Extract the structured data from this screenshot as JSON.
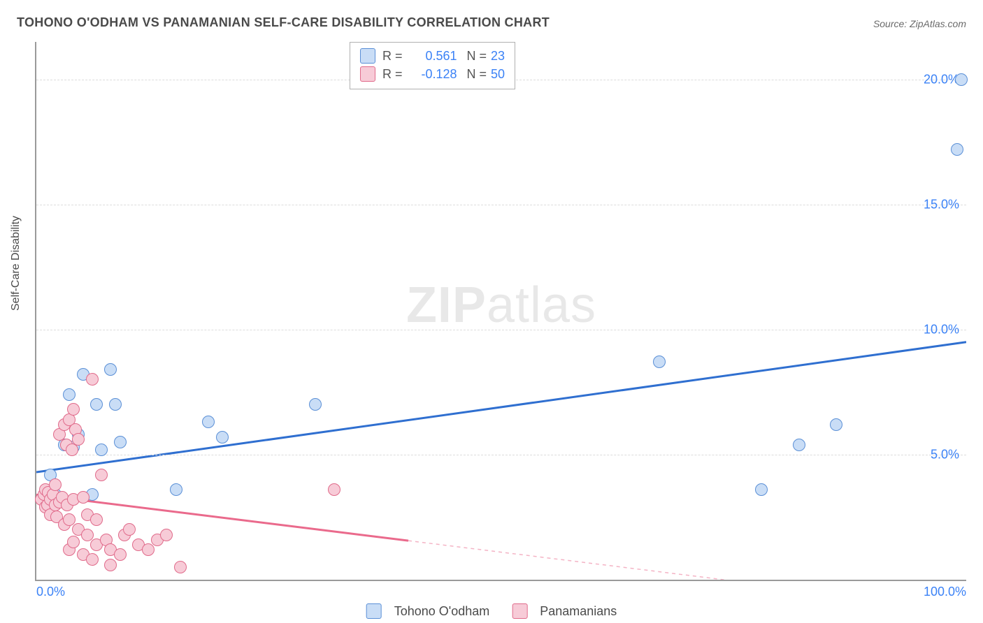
{
  "title": "TOHONO O'ODHAM VS PANAMANIAN SELF-CARE DISABILITY CORRELATION CHART",
  "source": "Source: ZipAtlas.com",
  "watermark_a": "ZIP",
  "watermark_b": "atlas",
  "chart": {
    "type": "scatter",
    "xlim": [
      0,
      100
    ],
    "ylim": [
      0,
      21.5
    ],
    "ylabel": "Self-Care Disability",
    "xtick_labels": [
      "0.0%",
      "100.0%"
    ],
    "ytick_positions": [
      5,
      10,
      15,
      20
    ],
    "ytick_labels": [
      "5.0%",
      "10.0%",
      "15.0%",
      "20.0%"
    ],
    "xtick_color": "#3b82f6",
    "ytick_color": "#3b82f6",
    "axis_color": "#9a9a9a",
    "grid_color": "#dcdcdc",
    "marker_size": 18,
    "series": [
      {
        "name": "Tohono O'odham",
        "color_fill": "#c9ddf6",
        "color_stroke": "#5a8fd6",
        "trend_color": "#2f6fd0",
        "trend": {
          "y_at_x0": 4.3,
          "y_at_x100": 9.5
        },
        "stats": {
          "R": "0.561",
          "N": "23"
        },
        "points": [
          [
            1.5,
            4.2
          ],
          [
            2.0,
            3.4
          ],
          [
            3.0,
            5.4
          ],
          [
            3.5,
            7.4
          ],
          [
            4.0,
            5.3
          ],
          [
            4.5,
            5.8
          ],
          [
            5.0,
            8.2
          ],
          [
            6.0,
            3.4
          ],
          [
            6.5,
            7.0
          ],
          [
            7.0,
            5.2
          ],
          [
            8.0,
            8.4
          ],
          [
            8.5,
            7.0
          ],
          [
            9.0,
            5.5
          ],
          [
            15.0,
            3.6
          ],
          [
            18.5,
            6.3
          ],
          [
            20.0,
            5.7
          ],
          [
            30.0,
            7.0
          ],
          [
            67.0,
            8.7
          ],
          [
            78.0,
            3.6
          ],
          [
            82.0,
            5.4
          ],
          [
            86.0,
            6.2
          ],
          [
            99.0,
            17.2
          ],
          [
            99.5,
            20.0
          ]
        ]
      },
      {
        "name": "Panamanians",
        "color_fill": "#f7cbd7",
        "color_stroke": "#e06a8a",
        "trend_color": "#ea6a8c",
        "trend": {
          "y_at_x0": 3.4,
          "y_at_x100": -1.2
        },
        "stats": {
          "R": "-0.128",
          "N": "50"
        },
        "points": [
          [
            0.5,
            3.2
          ],
          [
            0.8,
            3.4
          ],
          [
            1.0,
            2.9
          ],
          [
            1.0,
            3.6
          ],
          [
            1.2,
            3.0
          ],
          [
            1.3,
            3.5
          ],
          [
            1.5,
            3.2
          ],
          [
            1.5,
            2.6
          ],
          [
            1.8,
            3.4
          ],
          [
            2.0,
            3.0
          ],
          [
            2.0,
            3.8
          ],
          [
            2.2,
            2.5
          ],
          [
            2.5,
            3.1
          ],
          [
            2.5,
            5.8
          ],
          [
            2.8,
            3.3
          ],
          [
            3.0,
            6.2
          ],
          [
            3.0,
            2.2
          ],
          [
            3.2,
            5.4
          ],
          [
            3.3,
            3.0
          ],
          [
            3.5,
            6.4
          ],
          [
            3.5,
            1.2
          ],
          [
            3.5,
            2.4
          ],
          [
            3.8,
            5.2
          ],
          [
            4.0,
            6.8
          ],
          [
            4.0,
            3.2
          ],
          [
            4.0,
            1.5
          ],
          [
            4.2,
            6.0
          ],
          [
            4.5,
            2.0
          ],
          [
            4.5,
            5.6
          ],
          [
            5.0,
            1.0
          ],
          [
            5.0,
            3.3
          ],
          [
            5.5,
            1.8
          ],
          [
            5.5,
            2.6
          ],
          [
            6.0,
            8.0
          ],
          [
            6.0,
            0.8
          ],
          [
            6.5,
            1.4
          ],
          [
            6.5,
            2.4
          ],
          [
            7.0,
            4.2
          ],
          [
            7.5,
            1.6
          ],
          [
            8.0,
            0.6
          ],
          [
            8.0,
            1.2
          ],
          [
            9.0,
            1.0
          ],
          [
            9.5,
            1.8
          ],
          [
            10.0,
            2.0
          ],
          [
            11.0,
            1.4
          ],
          [
            12.0,
            1.2
          ],
          [
            13.0,
            1.6
          ],
          [
            14.0,
            1.8
          ],
          [
            15.5,
            0.5
          ],
          [
            32.0,
            3.6
          ]
        ]
      }
    ],
    "legend_box": {
      "rows": [
        {
          "swatch_fill": "#c9ddf6",
          "swatch_stroke": "#5a8fd6",
          "R": "0.561",
          "N": "23"
        },
        {
          "swatch_fill": "#f7cbd7",
          "swatch_stroke": "#e06a8a",
          "R": "-0.128",
          "N": "50"
        }
      ],
      "labels": {
        "R": "R =",
        "N": "N ="
      }
    },
    "bottom_legend": [
      {
        "label": "Tohono O'odham",
        "fill": "#c9ddf6",
        "stroke": "#5a8fd6"
      },
      {
        "label": "Panamanians",
        "fill": "#f7cbd7",
        "stroke": "#e06a8a"
      }
    ]
  }
}
